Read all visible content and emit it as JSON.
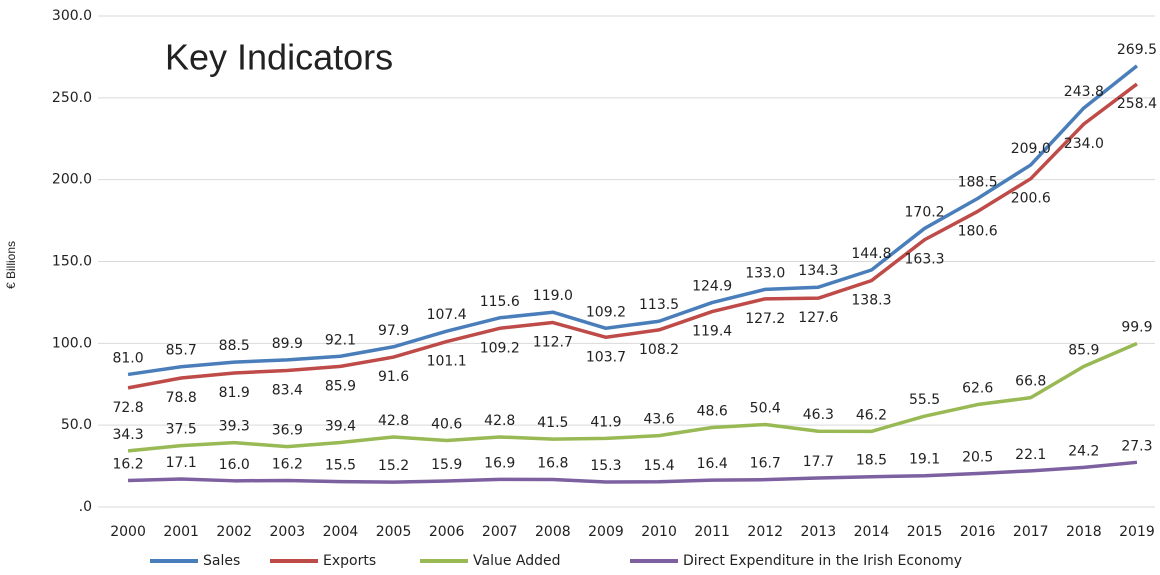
{
  "chart_data": {
    "type": "line",
    "title": "Key Indicators",
    "y_label": "€ Billions",
    "categories": [
      "2000",
      "2001",
      "2002",
      "2003",
      "2004",
      "2005",
      "2006",
      "2007",
      "2008",
      "2009",
      "2010",
      "2011",
      "2012",
      "2013",
      "2014",
      "2015",
      "2016",
      "2017",
      "2018",
      "2019"
    ],
    "series": [
      {
        "name": "Sales",
        "color": "#4a7ebb",
        "values": [
          81.0,
          85.7,
          88.5,
          89.9,
          92.1,
          97.9,
          107.4,
          115.6,
          119.0,
          109.2,
          113.5,
          124.9,
          133.0,
          134.3,
          144.8,
          170.2,
          188.5,
          209.0,
          243.8,
          269.5
        ],
        "value_labels": [
          "81.0",
          "85.7",
          "88.5",
          "89.9",
          "92.1",
          "97.9",
          "107.4",
          "115.6",
          "119.0",
          "109.2",
          "113.5",
          "124.9",
          "133.0",
          "134.3",
          "144.8",
          "170.2",
          "188.5",
          "209.0",
          "243.8",
          "269.5"
        ]
      },
      {
        "name": "Exports",
        "color": "#be4b48",
        "values": [
          72.8,
          78.8,
          81.9,
          83.4,
          85.9,
          91.6,
          101.1,
          109.2,
          112.7,
          103.7,
          108.2,
          119.4,
          127.2,
          127.6,
          138.3,
          163.3,
          180.6,
          200.6,
          234.0,
          258.4
        ],
        "value_labels": [
          "72.8",
          "78.8",
          "81.9",
          "83.4",
          "85.9",
          "91.6",
          "101.1",
          "109.2",
          "112.7",
          "103.7",
          "108.2",
          "119.4",
          "127.2",
          "127.6",
          "138.3",
          "163.3",
          "180.6",
          "200.6",
          "234.0",
          "258.4"
        ]
      },
      {
        "name": "Value Added",
        "color": "#98b954",
        "values": [
          34.3,
          37.5,
          39.3,
          36.9,
          39.4,
          42.8,
          40.6,
          42.8,
          41.5,
          41.9,
          43.6,
          48.6,
          50.4,
          46.3,
          46.2,
          55.5,
          62.6,
          66.8,
          85.9,
          99.9
        ],
        "value_labels": [
          "34.3",
          "37.5",
          "39.3",
          "36.9",
          "39.4",
          "42.8",
          "40.6",
          "42.8",
          "41.5",
          "41.9",
          "43.6",
          "48.6",
          "50.4",
          "46.3",
          "46.2",
          "55.5",
          "62.6",
          "66.8",
          "85.9",
          "99.9"
        ]
      },
      {
        "name": "Direct Expenditure in the Irish Economy",
        "color": "#7d60a0",
        "values": [
          16.2,
          17.1,
          16.0,
          16.2,
          15.5,
          15.2,
          15.9,
          16.9,
          16.8,
          15.3,
          15.4,
          16.4,
          16.7,
          17.7,
          18.5,
          19.1,
          20.5,
          22.1,
          24.2,
          27.3
        ],
        "value_labels": [
          "16.2",
          "17.1",
          "16.0",
          "16.2",
          "15.5",
          "15.2",
          "15.9",
          "16.9",
          "16.8",
          "15.3",
          "15.4",
          "16.4",
          "16.7",
          "17.7",
          "18.5",
          "19.1",
          "20.5",
          "22.1",
          "24.2",
          "27.3"
        ]
      }
    ],
    "ylim": [
      0,
      300
    ],
    "yticks": [
      {
        "value": 0,
        "label": ".0"
      },
      {
        "value": 50,
        "label": "50.0"
      },
      {
        "value": 100,
        "label": "100.0"
      },
      {
        "value": 150,
        "label": "150.0"
      },
      {
        "value": 200,
        "label": "200.0"
      },
      {
        "value": 250,
        "label": "250.0"
      },
      {
        "value": 300,
        "label": "300.0"
      }
    ],
    "grid": true,
    "legend": "bottom"
  }
}
